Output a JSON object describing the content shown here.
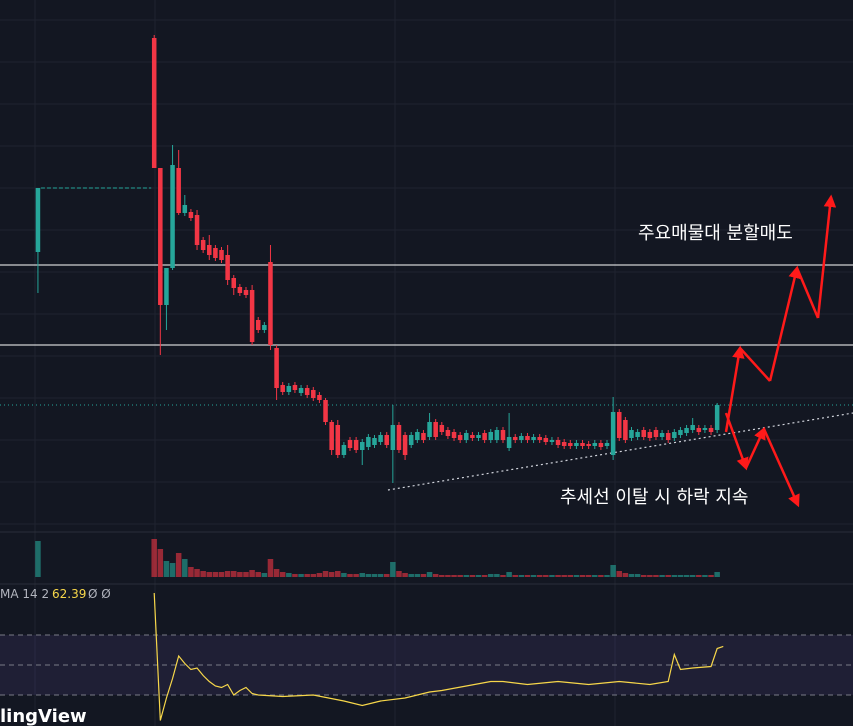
{
  "chart_data": {
    "type": "candlestick",
    "up_color": "#26a69a",
    "down_color": "#f23645",
    "xlim": [
      -6.2,
      133.2
    ],
    "ylim": [
      0,
      530
    ],
    "x": [
      0,
      19,
      20,
      21,
      22,
      23,
      24,
      25,
      26,
      27,
      28,
      29,
      30,
      31,
      32,
      33,
      34,
      35,
      36,
      37,
      38,
      39,
      40,
      41,
      42,
      43,
      44,
      45,
      46,
      47,
      48,
      49,
      50,
      51,
      52,
      53,
      54,
      55,
      56,
      57,
      58,
      59,
      60,
      61,
      62,
      63,
      64,
      65,
      66,
      67,
      68,
      69,
      70,
      71,
      72,
      73,
      74,
      75,
      76,
      77,
      78,
      79,
      80,
      81,
      82,
      83,
      84,
      85,
      86,
      87,
      88,
      89,
      90,
      91,
      92,
      93,
      94,
      95,
      96,
      97,
      98,
      99,
      100,
      101,
      102,
      103,
      104,
      105,
      106,
      107,
      108,
      109,
      110,
      111
    ],
    "open": [
      278,
      492,
      362,
      225,
      262,
      362,
      317,
      318,
      315,
      290,
      285,
      282,
      280,
      275,
      252,
      243,
      240,
      240,
      210,
      200,
      268,
      182,
      145,
      138,
      145,
      137,
      142,
      140,
      135,
      130,
      108,
      105,
      75,
      90,
      90,
      80,
      83,
      85,
      88,
      95,
      80,
      105,
      95,
      85,
      90,
      97,
      93,
      108,
      105,
      100,
      98,
      95,
      90,
      95,
      92,
      97,
      90,
      90,
      100,
      82,
      93,
      90,
      94,
      90,
      93,
      92,
      88,
      90,
      88,
      87,
      84,
      87,
      86,
      84,
      87,
      84,
      75,
      118,
      110,
      92,
      93,
      100,
      98,
      100,
      93,
      97,
      92,
      95,
      97,
      100,
      102,
      100,
      102,
      100
    ],
    "close": [
      342,
      362,
      225,
      262,
      365,
      317,
      325,
      312,
      285,
      280,
      275,
      272,
      270,
      250,
      242,
      237,
      235,
      188,
      200,
      205,
      185,
      142,
      138,
      144,
      140,
      142,
      135,
      132,
      130,
      108,
      80,
      75,
      85,
      82,
      80,
      88,
      93,
      92,
      95,
      85,
      105,
      80,
      75,
      95,
      98,
      90,
      108,
      93,
      98,
      94,
      92,
      90,
      97,
      92,
      95,
      90,
      98,
      100,
      90,
      93,
      90,
      94,
      90,
      93,
      90,
      88,
      90,
      85,
      84,
      84,
      87,
      84,
      84,
      87,
      83,
      87,
      118,
      92,
      90,
      100,
      98,
      93,
      92,
      93,
      97,
      90,
      98,
      100,
      102,
      105,
      98,
      102,
      98,
      125
    ],
    "high": [
      342,
      495,
      362,
      262,
      385,
      380,
      335,
      321,
      320,
      293,
      295,
      285,
      283,
      285,
      255,
      246,
      243,
      245,
      213,
      208,
      285,
      185,
      148,
      147,
      148,
      145,
      145,
      143,
      138,
      132,
      110,
      110,
      88,
      93,
      93,
      91,
      96,
      95,
      98,
      98,
      125,
      108,
      98,
      98,
      101,
      100,
      117,
      111,
      108,
      103,
      101,
      98,
      100,
      98,
      98,
      100,
      101,
      103,
      103,
      117,
      96,
      97,
      97,
      96,
      96,
      95,
      93,
      93,
      91,
      90,
      90,
      90,
      89,
      90,
      90,
      90,
      133,
      121,
      113,
      103,
      101,
      103,
      101,
      103,
      100,
      100,
      101,
      103,
      105,
      112,
      105,
      105,
      105,
      127
    ],
    "low": [
      237,
      362,
      175,
      200,
      260,
      315,
      314,
      309,
      280,
      277,
      270,
      269,
      267,
      245,
      235,
      234,
      232,
      185,
      197,
      197,
      180,
      130,
      135,
      135,
      137,
      134,
      132,
      129,
      127,
      105,
      75,
      72,
      72,
      79,
      77,
      65,
      80,
      82,
      85,
      82,
      47,
      77,
      70,
      82,
      87,
      87,
      90,
      90,
      95,
      91,
      89,
      87,
      87,
      89,
      89,
      87,
      87,
      87,
      87,
      79,
      87,
      87,
      87,
      87,
      87,
      85,
      85,
      82,
      81,
      81,
      81,
      81,
      81,
      81,
      80,
      81,
      70,
      89,
      87,
      89,
      90,
      90,
      89,
      90,
      90,
      87,
      89,
      92,
      94,
      97,
      95,
      97,
      95,
      97
    ],
    "volume": [
      36,
      38,
      28,
      16,
      14,
      24,
      18,
      10,
      8,
      6,
      5,
      5,
      5,
      6,
      6,
      5,
      5,
      7,
      5,
      4,
      18,
      8,
      5,
      4,
      3,
      3,
      3,
      3,
      4,
      6,
      5,
      6,
      4,
      3,
      3,
      4,
      3,
      3,
      3,
      3,
      15,
      6,
      4,
      3,
      3,
      3,
      5,
      3,
      2,
      2,
      2,
      2,
      2,
      2,
      2,
      2,
      3,
      3,
      2,
      5,
      2,
      2,
      2,
      2,
      2,
      2,
      2,
      2,
      2,
      2,
      2,
      2,
      2,
      2,
      2,
      2,
      12,
      6,
      4,
      3,
      3,
      2,
      2,
      2,
      2,
      2,
      2,
      2,
      2,
      2,
      2,
      2,
      2,
      5
    ],
    "vlim": [
      0,
      40
    ],
    "levels": [
      265,
      185
    ],
    "price_line": 125,
    "trendline": {
      "x": [
        57.2,
        133.2
      ],
      "values": [
        40,
        117
      ]
    },
    "annotations": [
      "주요매물대 분할매도",
      "추세선 이탈 시 하락 지속"
    ],
    "rsi": {
      "label": "MA 14 2",
      "flags": "Ø Ø",
      "color": "#f7d74a",
      "ylim": [
        10,
        100
      ],
      "bands": [
        70,
        50,
        30
      ],
      "x": [
        19,
        20,
        21,
        22,
        23,
        24,
        25,
        26,
        27,
        28,
        29,
        30,
        31,
        32,
        33,
        34,
        35,
        36,
        40,
        45,
        50,
        53,
        56,
        60,
        64,
        66,
        70,
        74,
        76,
        80,
        85,
        90,
        95,
        100,
        103,
        104,
        105,
        107,
        110,
        111,
        112
      ],
      "values": [
        98,
        13,
        28,
        41,
        56,
        51,
        47,
        48,
        43,
        39,
        36,
        35,
        37,
        30,
        33,
        35,
        31,
        30,
        29,
        30,
        26,
        23,
        26,
        28,
        32,
        33,
        36,
        39,
        39,
        37,
        39,
        37,
        39,
        37,
        39,
        57,
        47,
        48,
        49,
        61,
        62.39
      ]
    },
    "watermark": "lingView"
  }
}
